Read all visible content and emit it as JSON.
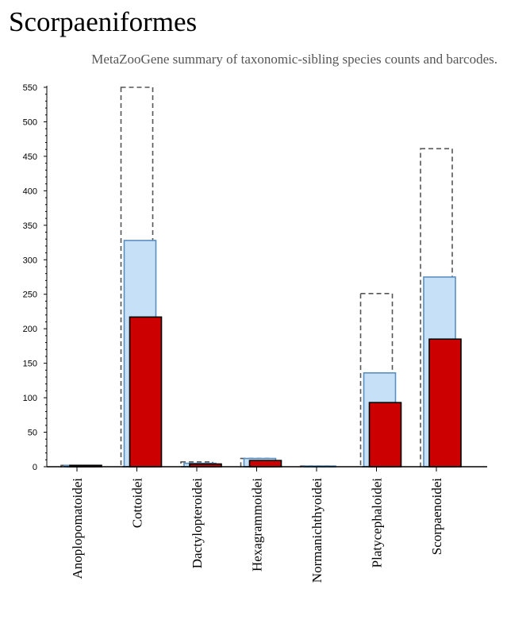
{
  "page": {
    "title": "Scorpaeniformes",
    "subtitle": "MetaZooGene summary of taxonomic-sibling species counts and barcodes."
  },
  "chart_data": {
    "type": "bar",
    "title": "Scorpaeniformes",
    "subtitle": "MetaZooGene summary of taxonomic-sibling species counts and barcodes.",
    "xlabel": "",
    "ylabel": "",
    "ylim": [
      0,
      550
    ],
    "yticks": [
      0,
      50,
      100,
      150,
      200,
      250,
      300,
      350,
      400,
      450,
      500,
      550
    ],
    "grid": false,
    "legend": "none",
    "categories": [
      "Anoplopomatoidei",
      "Cottoidei",
      "Dactylopteroidei",
      "Hexagrammoidei",
      "Normanichthyoidei",
      "Platycephaloidei",
      "Scorpaenoidei"
    ],
    "series": [
      {
        "role": "outline",
        "values": [
          2,
          550,
          7,
          12,
          1,
          251,
          461
        ],
        "stroke": "#555555",
        "dash": true
      },
      {
        "role": "light",
        "values": [
          2,
          328,
          5,
          12,
          1,
          136,
          275
        ],
        "fill": "#c6e0f8",
        "stroke": "#5b8fc0"
      },
      {
        "role": "dark",
        "values": [
          2,
          217,
          4,
          9,
          0,
          93,
          185
        ],
        "fill": "#cc0000",
        "stroke": "#000000"
      }
    ]
  }
}
